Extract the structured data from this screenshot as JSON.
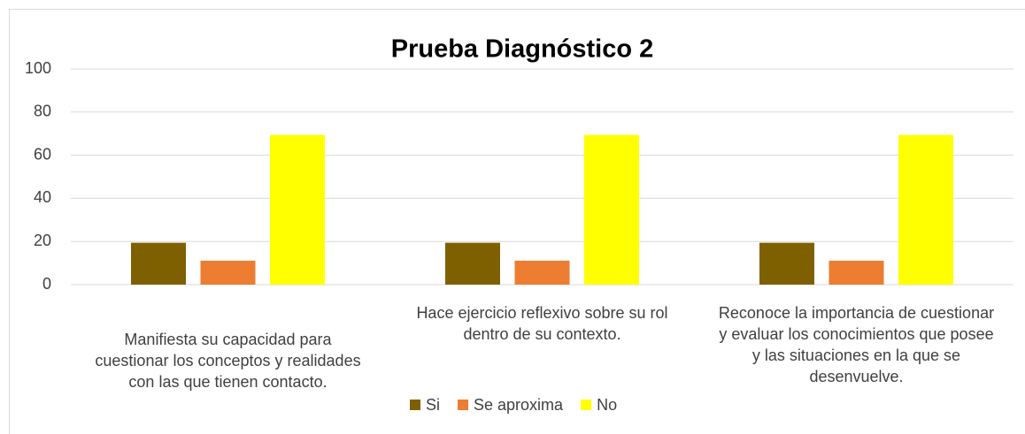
{
  "chart_data": {
    "type": "bar",
    "title": "Prueba Diagnóstico 2",
    "categories": [
      "Manifiesta su capacidad para cuestionar los conceptos y realidades con las que tienen contacto.",
      "Hace ejercicio reflexivo sobre su rol dentro de su contexto.",
      "Reconoce la importancia de cuestionar y evaluar los conocimientos que posee y las situaciones en la que se desenvuelve."
    ],
    "series": [
      {
        "name": "Si",
        "color": "#7f6000",
        "values": [
          19.4,
          19.4,
          19.4
        ]
      },
      {
        "name": "Se aproxima",
        "color": "#ed7d31",
        "values": [
          11.1,
          11.1,
          11.1
        ]
      },
      {
        "name": "No",
        "color": "#ffff00",
        "values": [
          69.4,
          69.4,
          69.4
        ]
      }
    ],
    "ylim": [
      0,
      100
    ],
    "yticks": [
      0,
      20,
      40,
      60,
      80,
      100
    ],
    "grid": true,
    "legend": "bottom"
  }
}
